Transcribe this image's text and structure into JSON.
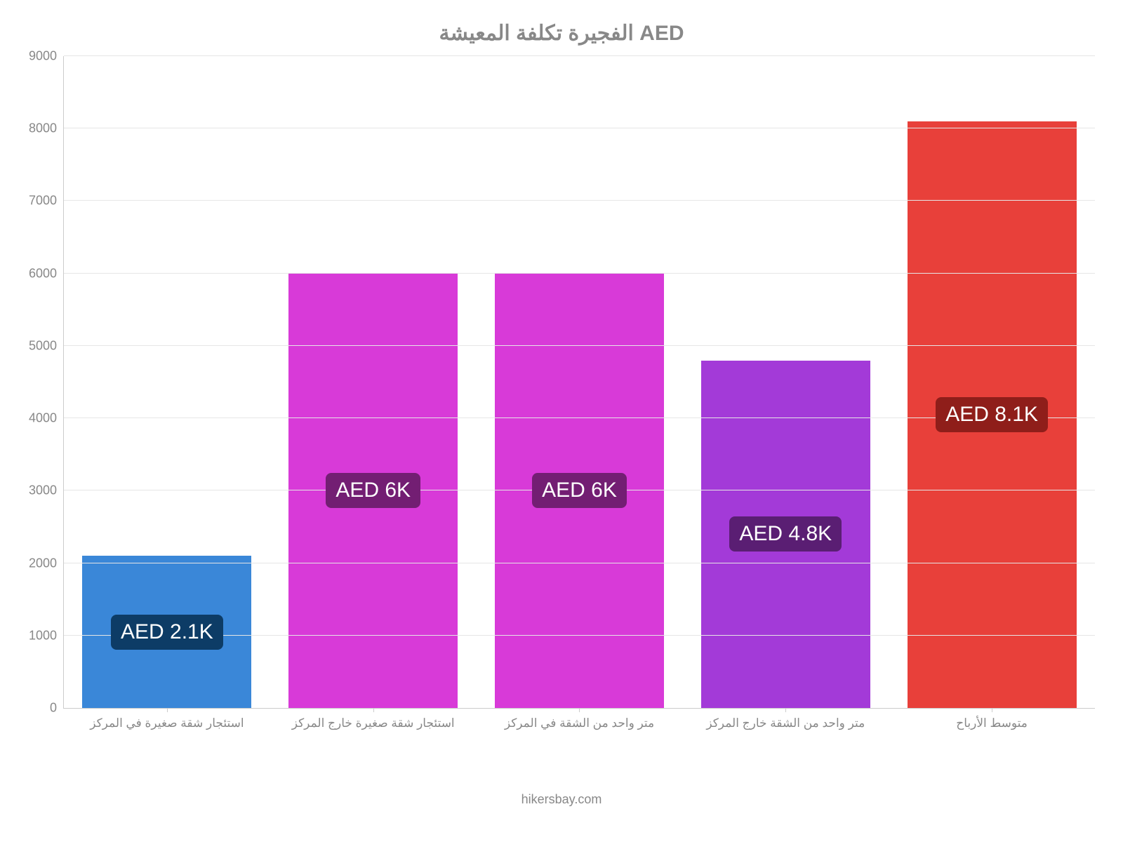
{
  "chart": {
    "type": "bar",
    "title": "الفجيرة تكلفة المعيشة AED",
    "title_fontsize": 30,
    "title_color": "#888888",
    "background_color": "#ffffff",
    "grid_color": "#e6e6e6",
    "axis_color": "#cccccc",
    "tick_label_color": "#888888",
    "tick_label_fontsize": 18,
    "x_tick_label_fontsize": 17,
    "ylim": [
      0,
      9000
    ],
    "ytick_step": 1000,
    "bar_width_ratio": 0.82,
    "categories": [
      "استئجار شقة صغيرة في المركز",
      "استئجار شقة صغيرة خارج المركز",
      "متر واحد من الشقة في المركز",
      "متر واحد من الشقة خارج المركز",
      "متوسط الأرباح"
    ],
    "values": [
      2100,
      6000,
      6000,
      4800,
      8100
    ],
    "bar_colors": [
      "#3a87d8",
      "#d83ad8",
      "#d83ad8",
      "#a33ad8",
      "#e8403a"
    ],
    "label_bg_colors": [
      "#0d3c66",
      "#731e73",
      "#731e73",
      "#5a1e73",
      "#8f1e1a"
    ],
    "value_labels": [
      "AED 2.1K",
      "AED 6K",
      "AED 6K",
      "AED 4.8K",
      "AED 8.1K"
    ],
    "value_label_fontsize": 30,
    "value_label_color": "#ffffff",
    "value_label_radius": 8,
    "yticks": [
      {
        "value": 0,
        "label": "0"
      },
      {
        "value": 1000,
        "label": "1000"
      },
      {
        "value": 2000,
        "label": "2000"
      },
      {
        "value": 3000,
        "label": "3000"
      },
      {
        "value": 4000,
        "label": "4000"
      },
      {
        "value": 5000,
        "label": "5000"
      },
      {
        "value": 6000,
        "label": "6000"
      },
      {
        "value": 7000,
        "label": "7000"
      },
      {
        "value": 8000,
        "label": "8000"
      },
      {
        "value": 9000,
        "label": "9000"
      }
    ]
  },
  "footer": "hikersbay.com"
}
